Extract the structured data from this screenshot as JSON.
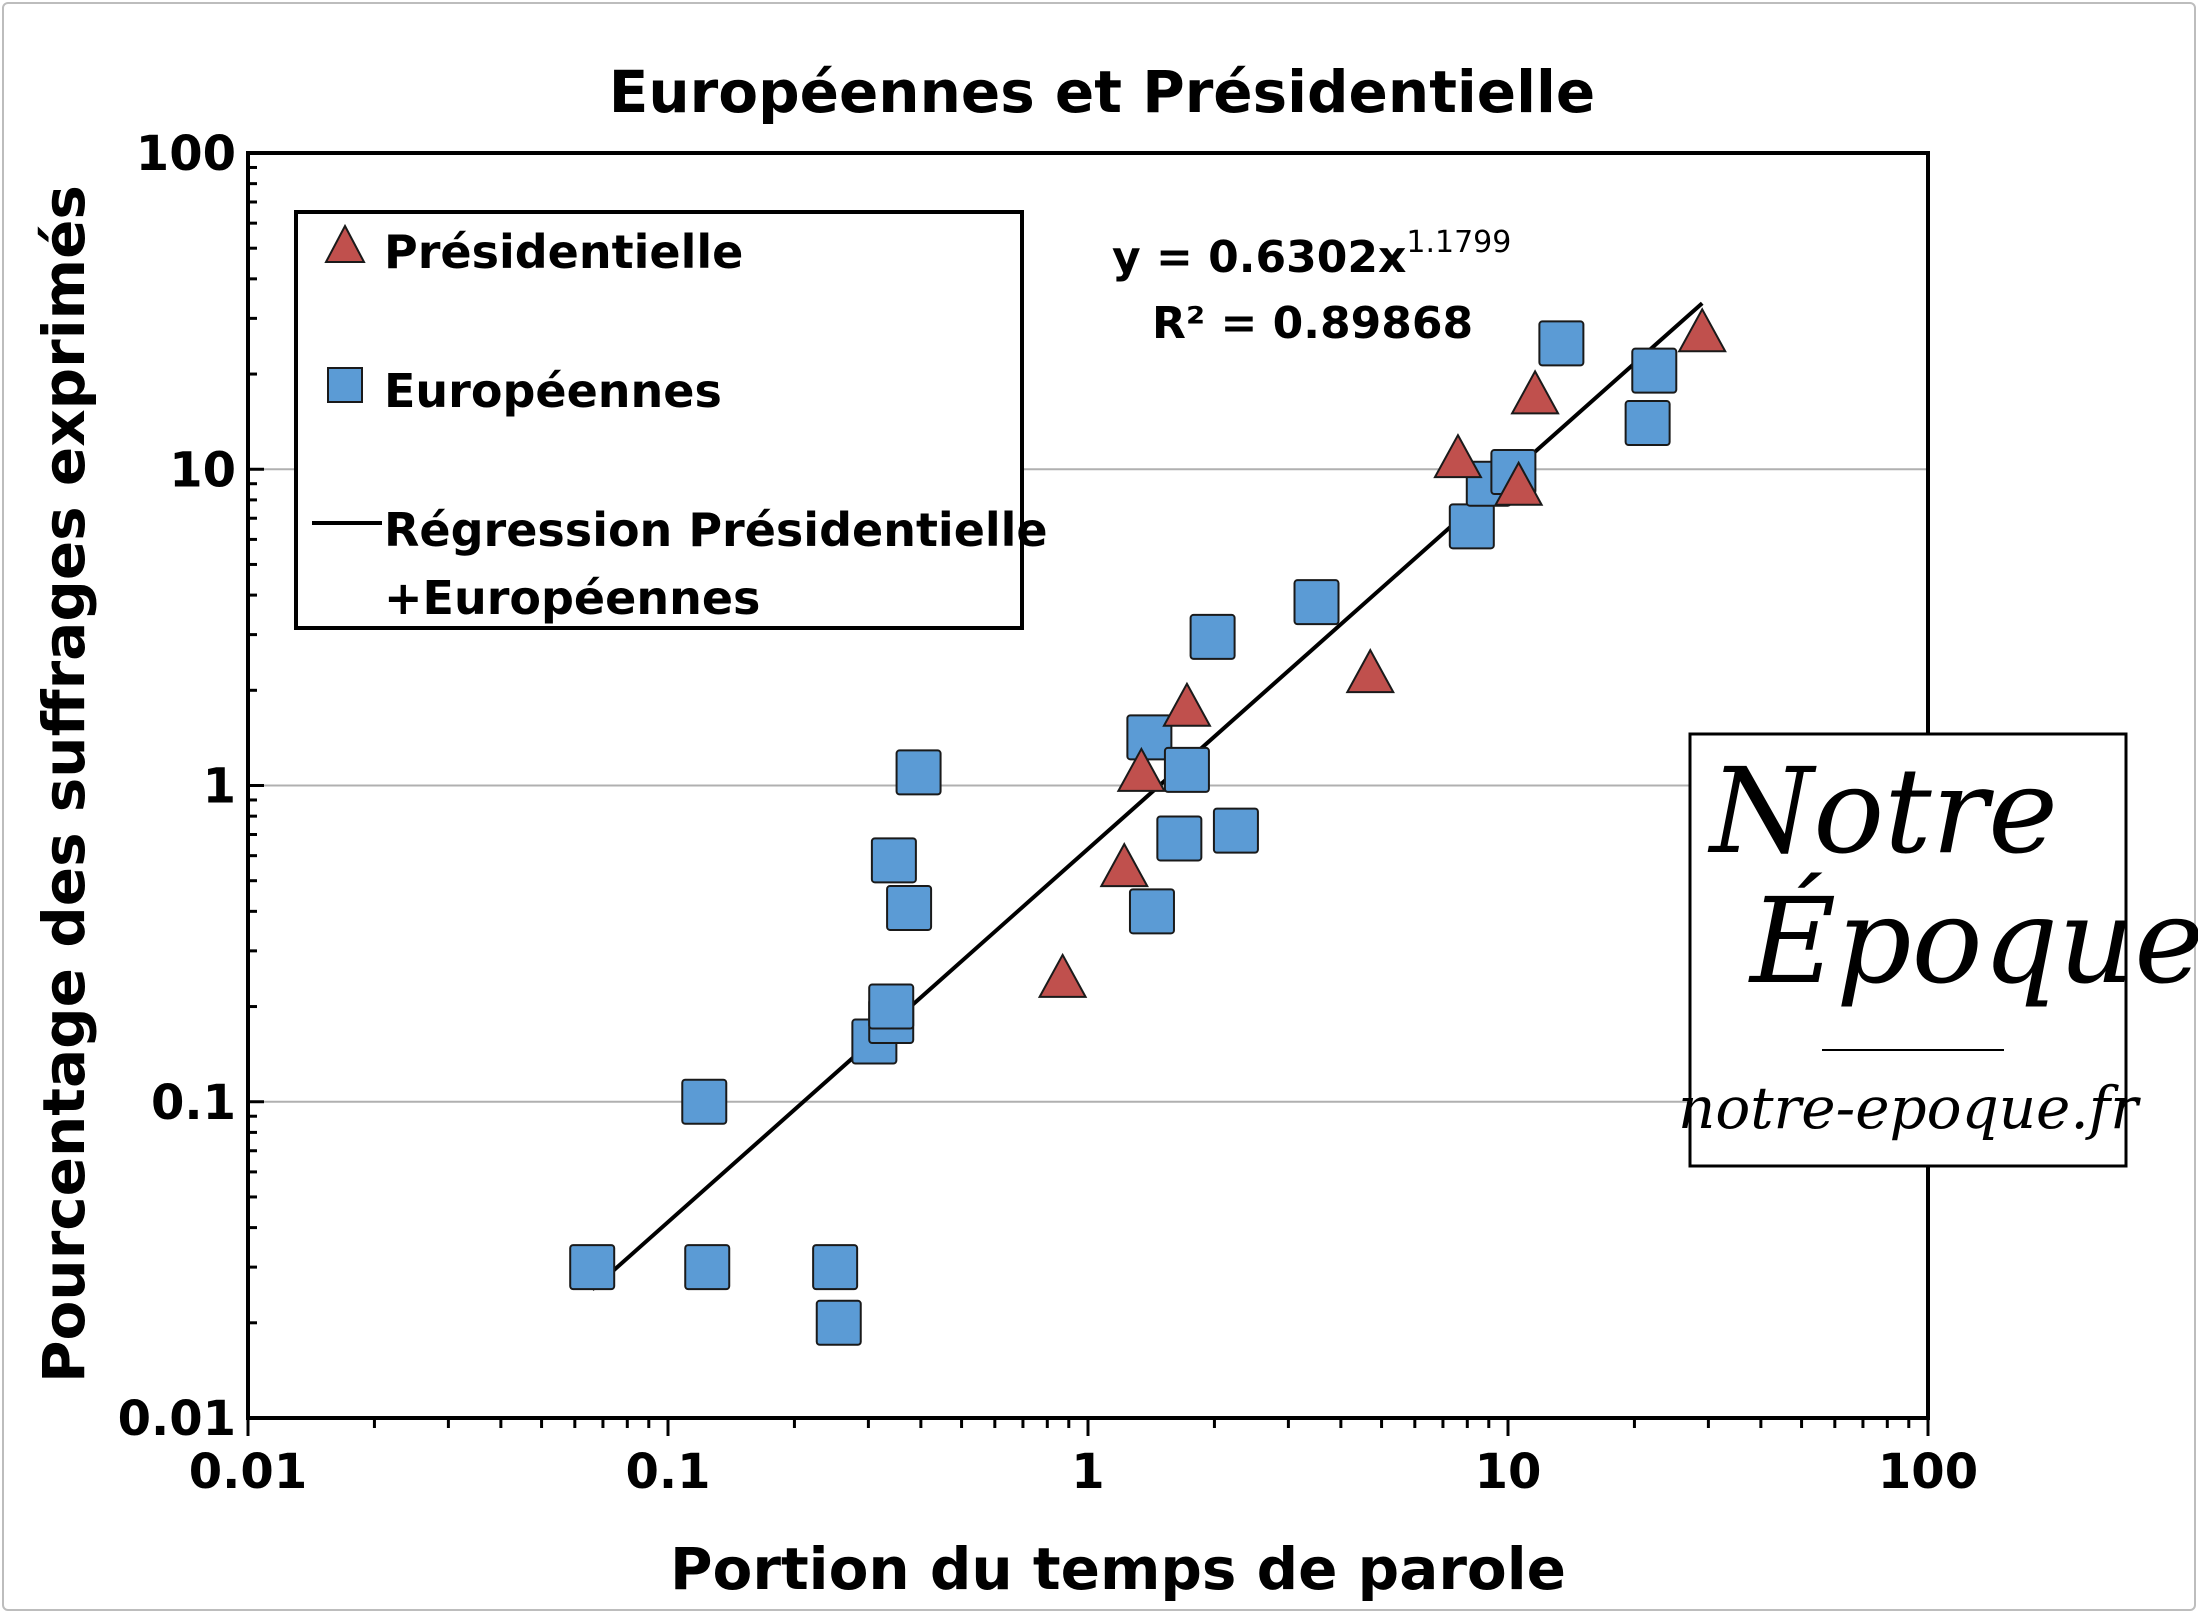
{
  "chart_data": {
    "type": "scatter",
    "title": "Européennes et Présidentielle",
    "xlabel": "Portion du temps de parole",
    "ylabel": "Pourcentage des suffrages exprimés",
    "xscale": "log",
    "yscale": "log",
    "xlim": [
      0.01,
      100
    ],
    "ylim": [
      0.01,
      100
    ],
    "x_ticks": [
      "0.01",
      "0.1",
      "1",
      "10",
      "100"
    ],
    "y_ticks": [
      "0.01",
      "0.1",
      "1",
      "10",
      "100"
    ],
    "grid": "horizontal major",
    "legend_position": "top-left",
    "series": [
      {
        "name": "Présidentielle",
        "marker": "triangle",
        "color": "#c0504d",
        "x": [
          0.87,
          1.22,
          1.34,
          1.72,
          4.7,
          7.6,
          10.6,
          11.6,
          29.0
        ],
        "y": [
          0.25,
          0.56,
          1.12,
          1.8,
          2.3,
          11.0,
          9.0,
          17.5,
          27.5
        ]
      },
      {
        "name": "Européennes",
        "marker": "square",
        "color": "#5b9bd5",
        "x": [
          0.066,
          0.122,
          0.124,
          0.25,
          0.255,
          0.31,
          0.34,
          0.34,
          0.345,
          0.375,
          0.395,
          1.4,
          1.42,
          1.65,
          1.72,
          1.98,
          2.25,
          3.5,
          8.2,
          9.0,
          10.3,
          13.4,
          21.5,
          22.3
        ],
        "y": [
          0.03,
          0.1,
          0.03,
          0.03,
          0.02,
          0.155,
          0.18,
          0.2,
          0.58,
          0.41,
          1.1,
          1.42,
          0.4,
          0.68,
          1.12,
          2.95,
          0.72,
          3.8,
          6.6,
          9.0,
          9.8,
          25.0,
          14.0,
          20.5
        ]
      }
    ],
    "regression": {
      "name": "Régression Présidentielle +Européennes",
      "legend_lines": [
        "Régression Présidentielle",
        "+Européennes"
      ],
      "coefficient": 0.6302,
      "exponent": 1.1799,
      "x_range": [
        0.066,
        29
      ],
      "equation_text": "y = 0.6302x",
      "exponent_text": "1.1799",
      "r2_text": "R² = 0.89868"
    }
  },
  "logo": {
    "line1": "Notre",
    "line2": "Époque",
    "url": "notre-epoque.fr"
  },
  "colors": {
    "triangle_fill": "#c0504d",
    "square_fill": "#5b9bd5",
    "marker_stroke": "#1a1a1a",
    "gridline": "#b0b0b0"
  }
}
